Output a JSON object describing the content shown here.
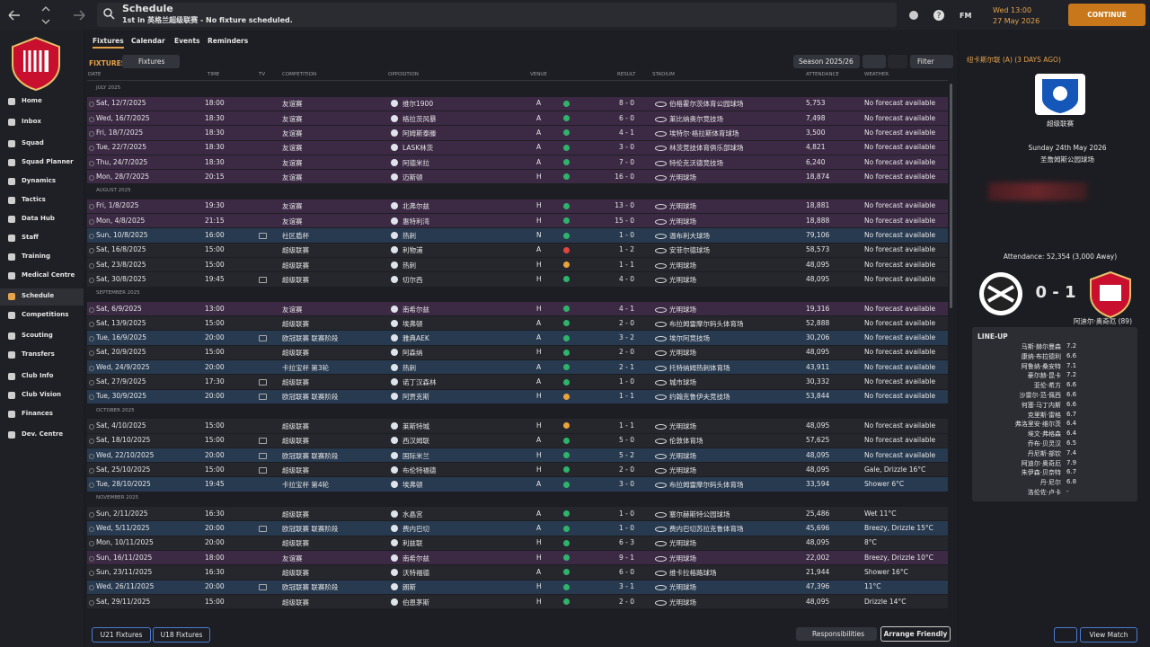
{
  "topbar": {
    "title": "Schedule",
    "subtitle": "1st in 英格兰超级联赛 - No fixture scheduled.",
    "brand": "FM",
    "time": "Wed 13:00",
    "date": "27 May 2026",
    "continue": "CONTINUE"
  },
  "sidebar": [
    "Home",
    "Inbox",
    "Squad",
    "Squad Planner",
    "Dynamics",
    "Tactics",
    "Data Hub",
    "Staff",
    "Training",
    "Medical Centre",
    "Schedule",
    "Competitions",
    "Scouting",
    "Transfers",
    "Club Info",
    "Club Vision",
    "Finances",
    "Dev. Centre"
  ],
  "tabs": [
    "Fixtures",
    "Calendar",
    "Events",
    "Reminders"
  ],
  "toolbar": {
    "label": "FIXTURES",
    "dropdown": "Fixtures",
    "season": "Season 2025/26",
    "filter": "Filter"
  },
  "table": {
    "headers": {
      "date": "DATE",
      "time": "TIME",
      "tv": "TV",
      "competition": "COMPETITION",
      "opposition": "OPPOSITION",
      "venue": "VENUE",
      "result": "RESULT",
      "stadium": "STADIUM",
      "attendance": "ATTENDANCE",
      "weather": "WEATHER"
    },
    "rows": [
      {
        "month": "JULY 2025"
      },
      {
        "date": "Sat, 12/7/2025",
        "time": "18:00",
        "tv": false,
        "competition": "友谊赛",
        "opposition": "维尔1900",
        "venue": "A",
        "result": "8 - 0",
        "stadium": "伯格霍尔茨体育公园球场",
        "attendance": "5,753",
        "weather": "No forecast available",
        "color": "#3c2a45",
        "result_color": "#2fb36b"
      },
      {
        "date": "Wed, 16/7/2025",
        "time": "18:30",
        "tv": false,
        "competition": "友谊赛",
        "opposition": "格拉茨风暴",
        "venue": "A",
        "result": "6 - 0",
        "stadium": "莱比纳奥尔竞技场",
        "attendance": "7,498",
        "weather": "No forecast available",
        "color": "#3c2a45",
        "result_color": "#2fb36b"
      },
      {
        "date": "Fri, 18/7/2025",
        "time": "18:30",
        "tv": false,
        "competition": "友谊赛",
        "opposition": "阿姆斯泰滕",
        "venue": "A",
        "result": "4 - 1",
        "stadium": "埃特尔·格拉斯体育球场",
        "attendance": "3,500",
        "weather": "No forecast available",
        "color": "#3c2a45",
        "result_color": "#2fb36b"
      },
      {
        "date": "Tue, 22/7/2025",
        "time": "18:30",
        "tv": false,
        "competition": "友谊赛",
        "opposition": "LASK林茨",
        "venue": "A",
        "result": "3 - 0",
        "stadium": "林茨竞技体育俱乐部球场",
        "attendance": "4,821",
        "weather": "No forecast available",
        "color": "#3c2a45",
        "result_color": "#2fb36b"
      },
      {
        "date": "Thu, 24/7/2025",
        "time": "18:30",
        "tv": false,
        "competition": "友谊赛",
        "opposition": "阿德米拉",
        "venue": "A",
        "result": "7 - 0",
        "stadium": "特伦克沃德竞技场",
        "attendance": "6,240",
        "weather": "No forecast available",
        "color": "#3c2a45",
        "result_color": "#2fb36b"
      },
      {
        "date": "Mon, 28/7/2025",
        "time": "20:15",
        "tv": false,
        "competition": "友谊赛",
        "opposition": "迈斯顿",
        "venue": "H",
        "result": "16 - 0",
        "stadium": "光明球场",
        "attendance": "18,874",
        "weather": "No forecast available",
        "color": "#3c2a45",
        "result_color": "#2fb36b"
      },
      {
        "month": "AUGUST 2025"
      },
      {
        "date": "Fri, 1/8/2025",
        "time": "19:30",
        "tv": false,
        "competition": "友谊赛",
        "opposition": "北弗尔兹",
        "venue": "H",
        "result": "13 - 0",
        "stadium": "光明球场",
        "attendance": "18,881",
        "weather": "No forecast available",
        "color": "#3c2a45",
        "result_color": "#2fb36b"
      },
      {
        "date": "Mon, 4/8/2025",
        "time": "21:15",
        "tv": false,
        "competition": "友谊赛",
        "opposition": "惠特利湾",
        "venue": "H",
        "result": "15 - 0",
        "stadium": "光明球场",
        "attendance": "18,888",
        "weather": "No forecast available",
        "color": "#3c2a45",
        "result_color": "#2fb36b"
      },
      {
        "date": "Sun, 10/8/2025",
        "time": "16:00",
        "tv": true,
        "competition": "社区盾杯",
        "opposition": "热刺",
        "venue": "N",
        "result": "1 - 0",
        "stadium": "温布利大球场",
        "attendance": "79,106",
        "weather": "No forecast available",
        "color": "#283a50",
        "result_color": "#2fb36b"
      },
      {
        "date": "Sat, 16/8/2025",
        "time": "15:00",
        "tv": false,
        "competition": "超级联赛",
        "opposition": "利物浦",
        "venue": "A",
        "result": "1 - 2",
        "stadium": "安菲尔德球场",
        "attendance": "58,573",
        "weather": "No forecast available",
        "color": "#25272d",
        "result_color": "#e0463f"
      },
      {
        "date": "Sat, 23/8/2025",
        "time": "15:00",
        "tv": false,
        "competition": "超级联赛",
        "opposition": "热刺",
        "venue": "H",
        "result": "1 - 1",
        "stadium": "光明球场",
        "attendance": "48,095",
        "weather": "No forecast available",
        "color": "#25272d",
        "result_color": "#e8a33a"
      },
      {
        "date": "Sat, 30/8/2025",
        "time": "19:45",
        "tv": true,
        "competition": "超级联赛",
        "opposition": "切尔西",
        "venue": "H",
        "result": "4 - 0",
        "stadium": "光明球场",
        "attendance": "48,095",
        "weather": "No forecast available",
        "color": "#25272d",
        "result_color": "#2fb36b"
      },
      {
        "month": "SEPTEMBER 2025"
      },
      {
        "date": "Sat, 6/9/2025",
        "time": "13:00",
        "tv": false,
        "competition": "友谊赛",
        "opposition": "南希尔兹",
        "venue": "H",
        "result": "4 - 1",
        "stadium": "光明球场",
        "attendance": "19,316",
        "weather": "No forecast available",
        "color": "#3c2a45",
        "result_color": "#2fb36b"
      },
      {
        "date": "Sat, 13/9/2025",
        "time": "15:00",
        "tv": false,
        "competition": "超级联赛",
        "opposition": "埃弗顿",
        "venue": "A",
        "result": "2 - 0",
        "stadium": "布拉姆雷摩尔码头体育场",
        "attendance": "52,888",
        "weather": "No forecast available",
        "color": "#25272d",
        "result_color": "#2fb36b"
      },
      {
        "date": "Tue, 16/9/2025",
        "time": "20:00",
        "tv": true,
        "competition": "欧冠联赛 联赛阶段",
        "opposition": "雅典AEK",
        "venue": "A",
        "result": "3 - 2",
        "stadium": "埃尔阿竞技场",
        "attendance": "30,206",
        "weather": "No forecast available",
        "color": "#283a50",
        "result_color": "#2fb36b"
      },
      {
        "date": "Sat, 20/9/2025",
        "time": "15:00",
        "tv": false,
        "competition": "超级联赛",
        "opposition": "阿森纳",
        "venue": "H",
        "result": "2 - 0",
        "stadium": "光明球场",
        "attendance": "48,095",
        "weather": "No forecast available",
        "color": "#25272d",
        "result_color": "#2fb36b"
      },
      {
        "date": "Wed, 24/9/2025",
        "time": "20:00",
        "tv": false,
        "competition": "卡拉宝杯 第3轮",
        "opposition": "热刺",
        "venue": "A",
        "result": "2 - 1",
        "stadium": "托特纳姆热刺体育场",
        "attendance": "43,911",
        "weather": "No forecast available",
        "color": "#283a50",
        "result_color": "#2fb36b"
      },
      {
        "date": "Sat, 27/9/2025",
        "time": "17:30",
        "tv": true,
        "competition": "超级联赛",
        "opposition": "诺丁汉森林",
        "venue": "A",
        "result": "1 - 0",
        "stadium": "城市球场",
        "attendance": "30,332",
        "weather": "No forecast available",
        "color": "#25272d",
        "result_color": "#2fb36b"
      },
      {
        "date": "Tue, 30/9/2025",
        "time": "20:00",
        "tv": true,
        "competition": "欧冠联赛 联赛阶段",
        "opposition": "阿贾克斯",
        "venue": "H",
        "result": "1 - 1",
        "stadium": "约翰克鲁伊夫竞技场",
        "attendance": "53,844",
        "weather": "No forecast available",
        "color": "#283a50",
        "result_color": "#e8a33a"
      },
      {
        "month": "OCTOBER 2025"
      },
      {
        "date": "Sat, 4/10/2025",
        "time": "15:00",
        "tv": false,
        "competition": "超级联赛",
        "opposition": "莱斯特城",
        "venue": "H",
        "result": "1 - 1",
        "stadium": "光明球场",
        "attendance": "48,095",
        "weather": "No forecast available",
        "color": "#25272d",
        "result_color": "#e8a33a"
      },
      {
        "date": "Sat, 18/10/2025",
        "time": "15:00",
        "tv": true,
        "competition": "超级联赛",
        "opposition": "西汉姆联",
        "venue": "A",
        "result": "5 - 0",
        "stadium": "伦敦体育场",
        "attendance": "57,625",
        "weather": "No forecast available",
        "color": "#25272d",
        "result_color": "#2fb36b"
      },
      {
        "date": "Wed, 22/10/2025",
        "time": "20:00",
        "tv": true,
        "competition": "欧冠联赛 联赛阶段",
        "opposition": "国际米兰",
        "venue": "H",
        "result": "5 - 2",
        "stadium": "光明球场",
        "attendance": "48,095",
        "weather": "No forecast available",
        "color": "#283a50",
        "result_color": "#2fb36b"
      },
      {
        "date": "Sat, 25/10/2025",
        "time": "15:00",
        "tv": true,
        "competition": "超级联赛",
        "opposition": "布伦特福德",
        "venue": "H",
        "result": "2 - 0",
        "stadium": "光明球场",
        "attendance": "48,095",
        "weather": "Gale, Drizzle 16°C",
        "color": "#25272d",
        "result_color": "#2fb36b"
      },
      {
        "date": "Tue, 28/10/2025",
        "time": "19:45",
        "tv": false,
        "competition": "卡拉宝杯 第4轮",
        "opposition": "埃弗顿",
        "venue": "A",
        "result": "3 - 0",
        "stadium": "布拉姆雷摩尔码头体育场",
        "attendance": "33,594",
        "weather": "Shower 6°C",
        "color": "#283a50",
        "result_color": "#2fb36b"
      },
      {
        "month": "NOVEMBER 2025"
      },
      {
        "date": "Sun, 2/11/2025",
        "time": "16:30",
        "tv": false,
        "competition": "超级联赛",
        "opposition": "水晶宫",
        "venue": "A",
        "result": "1 - 0",
        "stadium": "塞尔赫斯特公园球场",
        "attendance": "25,486",
        "weather": "Wet 11°C",
        "color": "#25272d",
        "result_color": "#2fb36b"
      },
      {
        "date": "Wed, 5/11/2025",
        "time": "20:00",
        "tv": true,
        "competition": "欧冠联赛 联赛阶段",
        "opposition": "费内巴切",
        "venue": "A",
        "result": "1 - 0",
        "stadium": "费内巴切苏拉克鲁体育场",
        "attendance": "45,696",
        "weather": "Breezy, Drizzle 15°C",
        "color": "#283a50",
        "result_color": "#2fb36b"
      },
      {
        "date": "Mon, 10/11/2025",
        "time": "20:00",
        "tv": false,
        "competition": "超级联赛",
        "opposition": "利兹联",
        "venue": "H",
        "result": "6 - 3",
        "stadium": "光明球场",
        "attendance": "48,095",
        "weather": "8°C",
        "color": "#25272d",
        "result_color": "#2fb36b"
      },
      {
        "date": "Sun, 16/11/2025",
        "time": "18:00",
        "tv": false,
        "competition": "友谊赛",
        "opposition": "南希尔兹",
        "venue": "H",
        "result": "9 - 1",
        "stadium": "光明球场",
        "attendance": "22,002",
        "weather": "Breezy, Drizzle 10°C",
        "color": "#3c2a45",
        "result_color": "#2fb36b"
      },
      {
        "date": "Sun, 23/11/2025",
        "time": "16:30",
        "tv": false,
        "competition": "超级联赛",
        "opposition": "沃特福德",
        "venue": "A",
        "result": "6 - 0",
        "stadium": "维卡拉格路球场",
        "attendance": "21,944",
        "weather": "Shower 16°C",
        "color": "#25272d",
        "result_color": "#2fb36b"
      },
      {
        "date": "Wed, 26/11/2025",
        "time": "20:00",
        "tv": true,
        "competition": "欧冠联赛 联赛阶段",
        "opposition": "朗斯",
        "venue": "H",
        "result": "3 - 1",
        "stadium": "光明球场",
        "attendance": "47,396",
        "weather": "11°C",
        "color": "#283a50",
        "result_color": "#2fb36b"
      },
      {
        "date": "Sat, 29/11/2025",
        "time": "15:00",
        "tv": false,
        "competition": "超级联赛",
        "opposition": "伯恩茅斯",
        "venue": "H",
        "result": "2 - 0",
        "stadium": "光明球场",
        "attendance": "48,095",
        "weather": "Drizzle 14°C",
        "color": "#25272d",
        "result_color": "#2fb36b"
      }
    ]
  },
  "footer": {
    "u21": "U21 Fixtures",
    "u18": "U18 Fixtures",
    "responsibilities": "Responsibilities",
    "arrange": "Arrange Friendly",
    "view": "View Match"
  },
  "panel": {
    "heading": "纽卡斯尔联 (A) (3 DAYS AGO)",
    "competition": "超级联赛",
    "match_date": "Sunday 24th May 2026",
    "stadium": "圣詹姆斯公园球场",
    "attendance": "Attendance: 52,354 (3,000 Away)",
    "score": "0 - 1",
    "scorer": "阿迪尔·奥奇厄 (89)",
    "lineup_title": "LINE-UP",
    "lineup": [
      {
        "name": "马斯·赫尔曼森",
        "rating": "7.2"
      },
      {
        "name": "康纳·布拉德利",
        "rating": "6.6"
      },
      {
        "name": "阿鲁纳·桑安特",
        "rating": "7.1"
      },
      {
        "name": "豪尔赫·昆卡",
        "rating": "7.2"
      },
      {
        "name": "亚伦·希方",
        "rating": "6.6"
      },
      {
        "name": "沙雷尔·范·佩西",
        "rating": "6.6"
      },
      {
        "name": "何塞·马丁内斯",
        "rating": "6.6"
      },
      {
        "name": "克里斯·雷格",
        "rating": "6.7"
      },
      {
        "name": "弗洛里安·维尔茨",
        "rating": "6.4"
      },
      {
        "name": "埃文·弗格森",
        "rating": "6.4"
      },
      {
        "name": "乔布·贝灵汉",
        "rating": "6.5"
      },
      {
        "name": "丹尼斯·部钦",
        "rating": "7.4"
      },
      {
        "name": "阿迪尔·奥奇厄",
        "rating": "7.9"
      },
      {
        "name": "朱伊森·贝奈特",
        "rating": "6.7"
      },
      {
        "name": "丹·尼尔",
        "rating": "6.8"
      },
      {
        "name": "洛伦佐·卢卡",
        "rating": "-"
      }
    ]
  }
}
